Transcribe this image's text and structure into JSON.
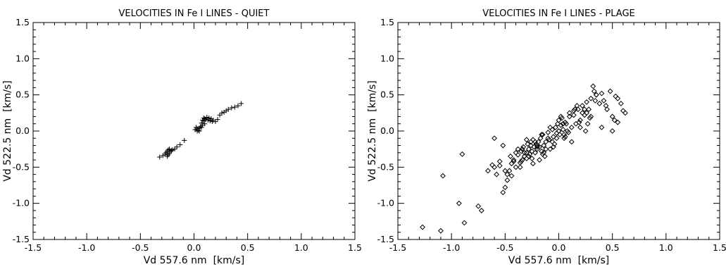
{
  "chart_data": [
    {
      "type": "scatter",
      "title": "VELOCITIES IN Fe I LINES - QUIET",
      "xlabel": "Vd 557.6 nm  [km/s]",
      "ylabel": "Vd 522.5 nm  [km/s]",
      "xlim": [
        -1.5,
        1.5
      ],
      "ylim": [
        -1.5,
        1.5
      ],
      "xticks": [
        -1.5,
        -1.0,
        -0.5,
        0.0,
        0.5,
        1.0,
        1.5
      ],
      "yticks": [
        -1.5,
        -1.0,
        -0.5,
        0.0,
        0.5,
        1.0,
        1.5
      ],
      "xtick_labels": [
        "-1.5",
        "-1.0",
        "-0.5",
        "0.0",
        "0.5",
        "1.0",
        "1.5"
      ],
      "ytick_labels": [
        "-1.5",
        "-1.0",
        "-0.5",
        "0.0",
        "0.5",
        "1.0",
        "1.5"
      ],
      "grid": false,
      "marker": "plus",
      "x": [
        -0.32,
        -0.29,
        -0.27,
        -0.26,
        -0.25,
        -0.25,
        -0.24,
        -0.24,
        -0.23,
        -0.23,
        -0.22,
        -0.21,
        -0.2,
        -0.18,
        -0.16,
        -0.13,
        -0.09,
        0.01,
        0.02,
        0.03,
        0.03,
        0.04,
        0.05,
        0.05,
        0.06,
        0.07,
        0.07,
        0.08,
        0.08,
        0.09,
        0.09,
        0.1,
        0.1,
        0.11,
        0.12,
        0.13,
        0.14,
        0.15,
        0.16,
        0.17,
        0.18,
        0.2,
        0.22,
        0.24,
        0.26,
        0.28,
        0.3,
        0.32,
        0.35,
        0.38,
        0.41,
        0.44
      ],
      "y": [
        -0.36,
        -0.34,
        -0.32,
        -0.3,
        -0.35,
        -0.28,
        -0.33,
        -0.26,
        -0.31,
        -0.25,
        -0.28,
        -0.27,
        -0.26,
        -0.25,
        -0.22,
        -0.19,
        -0.13,
        0.02,
        0.05,
        0.0,
        0.03,
        0.01,
        0.04,
        0.0,
        0.06,
        0.05,
        0.11,
        0.15,
        0.08,
        0.18,
        0.14,
        0.17,
        0.1,
        0.16,
        0.19,
        0.15,
        0.18,
        0.14,
        0.17,
        0.13,
        0.15,
        0.13,
        0.16,
        0.22,
        0.25,
        0.26,
        0.28,
        0.3,
        0.32,
        0.33,
        0.35,
        0.38
      ]
    },
    {
      "type": "scatter",
      "title": "VELOCITIES IN Fe I LINES - PLAGE",
      "xlabel": "Vd 557.6 nm  [km/s]",
      "ylabel": "Vd 522.5 nm  [km/s]",
      "xlim": [
        -1.5,
        1.5
      ],
      "ylim": [
        -1.5,
        1.5
      ],
      "xticks": [
        -1.5,
        -1.0,
        -0.5,
        0.0,
        0.5,
        1.0,
        1.5
      ],
      "yticks": [
        -1.5,
        -1.0,
        -0.5,
        0.0,
        0.5,
        1.0,
        1.5
      ],
      "xtick_labels": [
        "-1.5",
        "-1.0",
        "-0.5",
        "0.0",
        "0.5",
        "1.0",
        "1.5"
      ],
      "ytick_labels": [
        "-1.5",
        "-1.0",
        "-0.5",
        "0.0",
        "0.5",
        "1.0",
        "1.5"
      ],
      "grid": false,
      "marker": "diamond",
      "x": [
        -1.27,
        -1.1,
        -1.08,
        -0.93,
        -0.88,
        -0.9,
        -0.75,
        -0.72,
        -0.66,
        -0.62,
        -0.6,
        -0.58,
        -0.6,
        -0.55,
        -0.52,
        -0.5,
        -0.48,
        -0.46,
        -0.44,
        -0.42,
        -0.4,
        -0.38,
        -0.36,
        -0.35,
        -0.34,
        -0.33,
        -0.32,
        -0.3,
        -0.29,
        -0.28,
        -0.27,
        -0.26,
        -0.25,
        -0.24,
        -0.23,
        -0.22,
        -0.21,
        -0.2,
        -0.19,
        -0.18,
        -0.17,
        -0.16,
        -0.15,
        -0.14,
        -0.13,
        -0.12,
        -0.1,
        -0.09,
        -0.08,
        -0.06,
        -0.05,
        -0.04,
        -0.03,
        -0.02,
        -0.01,
        0.0,
        0.01,
        0.02,
        0.03,
        0.04,
        0.05,
        0.06,
        0.08,
        0.1,
        0.12,
        0.14,
        0.16,
        0.18,
        0.2,
        0.22,
        0.24,
        0.26,
        0.28,
        0.3,
        0.32,
        0.35,
        0.38,
        0.4,
        0.42,
        0.45,
        0.48,
        0.5,
        0.53,
        0.55,
        0.58,
        0.6,
        0.62,
        -0.45,
        -0.4,
        -0.35,
        -0.3,
        -0.25,
        -0.2,
        -0.15,
        -0.1,
        -0.05,
        0.0,
        0.05,
        0.1,
        0.15,
        0.2,
        0.25,
        0.3,
        0.35,
        -0.55,
        -0.5,
        -0.42,
        -0.38,
        -0.32,
        -0.28,
        -0.22,
        -0.18,
        -0.12,
        -0.08,
        -0.02,
        0.02,
        0.07,
        0.12,
        0.17,
        0.22,
        0.27,
        0.33,
        0.4,
        0.5,
        0.55,
        -0.48,
        -0.44,
        -0.36,
        -0.3,
        -0.24,
        -0.2,
        -0.14,
        -0.06,
        0.0,
        0.04,
        0.09,
        0.14,
        0.19,
        0.24,
        0.29,
        0.34,
        -0.52,
        -0.34,
        -0.26,
        -0.16,
        0.06,
        0.26,
        0.44,
        0.52
      ],
      "y": [
        -1.33,
        -1.38,
        -0.62,
        -1.0,
        -1.27,
        -0.32,
        -1.04,
        -1.1,
        -0.55,
        -0.47,
        -0.1,
        -0.6,
        -0.5,
        -0.42,
        -0.85,
        -0.78,
        -0.68,
        -0.55,
        -0.62,
        -0.42,
        -0.5,
        -0.33,
        -0.44,
        -0.28,
        -0.4,
        -0.22,
        -0.35,
        -0.3,
        -0.18,
        -0.25,
        -0.32,
        -0.2,
        -0.28,
        -0.12,
        -0.22,
        -0.3,
        -0.18,
        -0.25,
        -0.15,
        -0.22,
        -0.1,
        -0.28,
        -0.05,
        -0.2,
        -0.35,
        -0.15,
        -0.02,
        -0.12,
        -0.25,
        0.02,
        -0.08,
        -0.18,
        0.05,
        -0.03,
        0.1,
        0.0,
        -0.05,
        0.08,
        0.18,
        0.02,
        -0.1,
        0.12,
        0.0,
        0.2,
        0.05,
        0.28,
        0.1,
        0.3,
        0.15,
        0.35,
        0.22,
        0.4,
        0.3,
        0.45,
        0.62,
        0.5,
        0.38,
        0.52,
        0.42,
        0.3,
        0.55,
        0.2,
        0.48,
        0.12,
        0.38,
        0.28,
        0.25,
        -0.35,
        -0.3,
        -0.42,
        -0.12,
        -0.38,
        -0.2,
        -0.32,
        -0.1,
        -0.22,
        0.15,
        -0.05,
        0.25,
        0.3,
        0.05,
        0.0,
        0.2,
        0.5,
        -0.48,
        -0.55,
        -0.4,
        -0.25,
        -0.3,
        -0.35,
        -0.15,
        -0.4,
        -0.25,
        0.05,
        -0.1,
        0.2,
        0.1,
        -0.15,
        0.35,
        0.25,
        0.1,
        0.55,
        0.05,
        0.0,
        0.45,
        -0.6,
        -0.45,
        -0.5,
        -0.38,
        -0.45,
        -0.22,
        -0.3,
        -0.15,
        0.0,
        0.1,
        -0.02,
        0.22,
        0.12,
        0.3,
        0.18,
        0.42,
        -0.2,
        -0.25,
        -0.15,
        -0.05,
        -0.08,
        0.25,
        0.35,
        0.15
      ]
    }
  ]
}
